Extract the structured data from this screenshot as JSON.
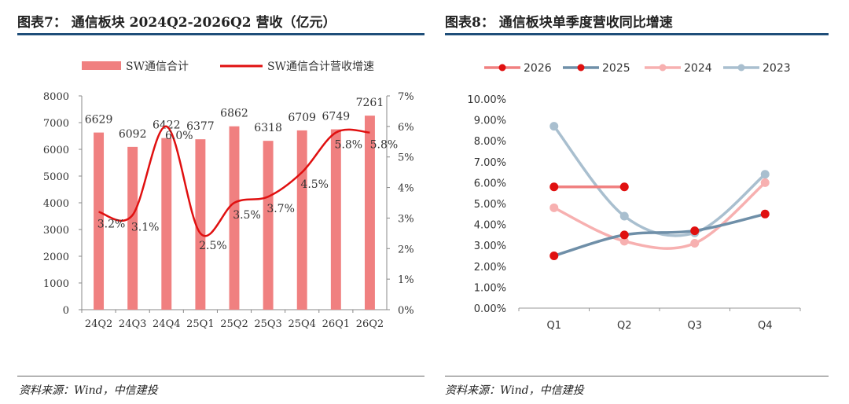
{
  "left": {
    "title": "图表7：   通信板块 2024Q2-2026Q2 营收（亿元）",
    "source": "资料来源：Wind，中信建投"
  },
  "right": {
    "title": "图表8：   通信板块单季度营收同比增速",
    "source": "资料来源：Wind，中信建投"
  },
  "chart_data": [
    {
      "type": "bar",
      "categories": [
        "24Q2",
        "24Q3",
        "24Q4",
        "25Q1",
        "25Q2",
        "25Q3",
        "25Q4",
        "26Q1",
        "26Q2"
      ],
      "series": [
        {
          "name": "SW通信合计",
          "type": "bar",
          "axis": "left",
          "values": [
            6629,
            6092,
            6422,
            6377,
            6862,
            6318,
            6709,
            6749,
            7261
          ],
          "labels": [
            "6629",
            "6092",
            "6422",
            "6377",
            "6862",
            "6318",
            "6709",
            "6749",
            "7261"
          ],
          "color": "#f08080"
        },
        {
          "name": "SW通信合计营收增速",
          "type": "line",
          "axis": "right",
          "values": [
            3.2,
            3.1,
            6.0,
            2.5,
            3.5,
            3.7,
            4.5,
            5.8,
            5.8
          ],
          "labels": [
            "3.2%",
            "3.1%",
            "6.0%",
            "2.5%",
            "3.5%",
            "3.7%",
            "4.5%",
            "5.8%",
            "5.8%"
          ],
          "color": "#e01010"
        }
      ],
      "y_left": {
        "ylim": [
          0,
          8000
        ],
        "ticks": [
          "0",
          "1000",
          "2000",
          "3000",
          "4000",
          "5000",
          "6000",
          "7000",
          "8000"
        ]
      },
      "y_right": {
        "ylim": [
          0,
          7
        ],
        "ticks": [
          "0%",
          "1%",
          "2%",
          "3%",
          "4%",
          "5%",
          "6%",
          "7%"
        ]
      },
      "legend": "top"
    },
    {
      "type": "line",
      "categories": [
        "Q1",
        "Q2",
        "Q3",
        "Q4"
      ],
      "series": [
        {
          "name": "2026",
          "values": [
            5.8,
            5.8,
            null,
            null
          ],
          "color": "#f08080",
          "marker": "#e01010"
        },
        {
          "name": "2025",
          "values": [
            2.5,
            3.5,
            3.7,
            4.5
          ],
          "color": "#6f8fa8",
          "marker": "#e01010"
        },
        {
          "name": "2024",
          "values": [
            4.8,
            3.2,
            3.1,
            6.0
          ],
          "color": "#f7b0b0",
          "marker": "#f7b0b0"
        },
        {
          "name": "2023",
          "values": [
            8.7,
            4.4,
            3.6,
            6.4
          ],
          "color": "#a9bfcf",
          "marker": "#a9bfcf"
        }
      ],
      "ylim": [
        0,
        10
      ],
      "yticks": [
        "0.00%",
        "1.00%",
        "2.00%",
        "3.00%",
        "4.00%",
        "5.00%",
        "6.00%",
        "7.00%",
        "8.00%",
        "9.00%",
        "10.00%"
      ],
      "legend": "top"
    }
  ]
}
